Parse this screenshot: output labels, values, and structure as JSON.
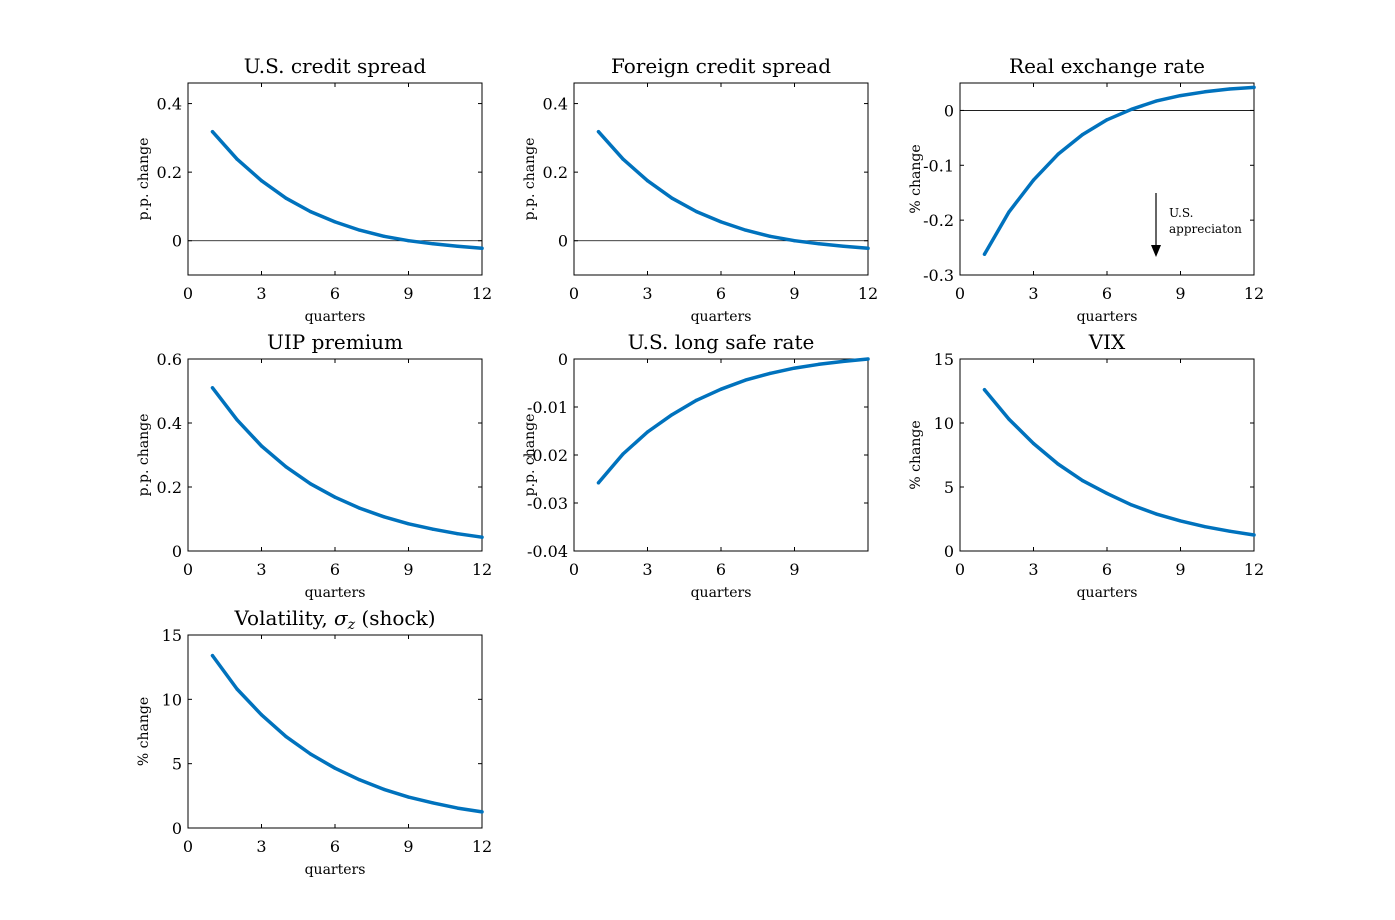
{
  "colors": {
    "line": "#0072BD",
    "zero_line": "#000000",
    "axes": "#000000"
  },
  "chart_data": [
    {
      "type": "line",
      "title": "U.S. credit spread",
      "xlabel": "quarters",
      "ylabel": "p.p. change",
      "xlim": [
        0,
        12
      ],
      "ylim": [
        -0.1,
        0.46
      ],
      "xticks": [
        0,
        3,
        6,
        9,
        12
      ],
      "xtick_labels": [
        "0",
        "3",
        "6",
        "9",
        "12"
      ],
      "yticks": [
        0,
        0.2,
        0.4
      ],
      "ytick_labels": [
        "0",
        "0.2",
        "0.4"
      ],
      "zero_line": true,
      "grid": false,
      "series": [
        {
          "x": [
            1,
            2,
            3,
            4,
            5,
            6,
            7,
            8,
            9,
            10,
            11,
            12
          ],
          "y": [
            0.318,
            0.238,
            0.175,
            0.124,
            0.085,
            0.055,
            0.031,
            0.013,
            0.0,
            -0.009,
            -0.016,
            -0.022
          ]
        }
      ]
    },
    {
      "type": "line",
      "title": "Foreign credit spread",
      "xlabel": "quarters",
      "ylabel": "p.p. change",
      "xlim": [
        0,
        12
      ],
      "ylim": [
        -0.1,
        0.46
      ],
      "xticks": [
        0,
        3,
        6,
        9,
        12
      ],
      "xtick_labels": [
        "0",
        "3",
        "6",
        "9",
        "12"
      ],
      "yticks": [
        0,
        0.2,
        0.4
      ],
      "ytick_labels": [
        "0",
        "0.2",
        "0.4"
      ],
      "zero_line": true,
      "grid": false,
      "series": [
        {
          "x": [
            1,
            2,
            3,
            4,
            5,
            6,
            7,
            8,
            9,
            10,
            11,
            12
          ],
          "y": [
            0.318,
            0.238,
            0.175,
            0.124,
            0.085,
            0.055,
            0.031,
            0.013,
            0.0,
            -0.009,
            -0.016,
            -0.022
          ]
        }
      ]
    },
    {
      "type": "line",
      "title": "Real exchange rate",
      "xlabel": "quarters",
      "ylabel": "% change",
      "xlim": [
        0,
        12
      ],
      "ylim": [
        -0.3,
        0.05
      ],
      "xticks": [
        0,
        3,
        6,
        9,
        12
      ],
      "xtick_labels": [
        "0",
        "3",
        "6",
        "9",
        "12"
      ],
      "yticks": [
        -0.3,
        -0.2,
        -0.1,
        0
      ],
      "ytick_labels": [
        "-0.3",
        "-0.2",
        "-0.1",
        "0"
      ],
      "zero_line": true,
      "grid": false,
      "annotation": {
        "text_lines": [
          "U.S.",
          "appreciaton"
        ],
        "x": 8,
        "y": -0.2
      },
      "series": [
        {
          "x": [
            1,
            2,
            3,
            4,
            5,
            6,
            7,
            8,
            9,
            10,
            11,
            12
          ],
          "y": [
            -0.262,
            -0.185,
            -0.127,
            -0.08,
            -0.044,
            -0.017,
            0.002,
            0.017,
            0.027,
            0.034,
            0.039,
            0.042
          ]
        }
      ]
    },
    {
      "type": "line",
      "title": "UIP premium",
      "xlabel": "quarters",
      "ylabel": "p.p. change",
      "xlim": [
        0,
        12
      ],
      "ylim": [
        0,
        0.6
      ],
      "xticks": [
        0,
        3,
        6,
        9,
        12
      ],
      "xtick_labels": [
        "0",
        "3",
        "6",
        "9",
        "12"
      ],
      "yticks": [
        0,
        0.2,
        0.4,
        0.6
      ],
      "ytick_labels": [
        "0",
        "0.2",
        "0.4",
        "0.6"
      ],
      "zero_line": false,
      "grid": false,
      "series": [
        {
          "x": [
            1,
            2,
            3,
            4,
            5,
            6,
            7,
            8,
            9,
            10,
            11,
            12
          ],
          "y": [
            0.51,
            0.41,
            0.328,
            0.263,
            0.21,
            0.168,
            0.134,
            0.107,
            0.085,
            0.068,
            0.054,
            0.043
          ]
        }
      ]
    },
    {
      "type": "line",
      "title": "U.S. long safe rate",
      "xlabel": "quarters",
      "ylabel": "p.p. change",
      "xlim": [
        0,
        12
      ],
      "ylim": [
        -0.04,
        0
      ],
      "xticks": [
        0,
        3,
        6,
        9
      ],
      "xtick_labels": [
        "0",
        "3",
        "6",
        "9"
      ],
      "yticks": [
        -0.04,
        -0.03,
        -0.02,
        -0.01,
        0
      ],
      "ytick_labels": [
        "-0.04",
        "-0.03",
        "-0.02",
        "-0.01",
        "0"
      ],
      "zero_line": false,
      "grid": false,
      "series": [
        {
          "x": [
            1,
            2,
            3,
            4,
            5,
            6,
            7,
            8,
            9,
            10,
            11,
            12
          ],
          "y": [
            -0.0258,
            -0.0198,
            -0.0152,
            -0.0116,
            -0.0086,
            -0.0063,
            -0.0044,
            -0.003,
            -0.0019,
            -0.0011,
            -0.0005,
            0.0
          ]
        }
      ]
    },
    {
      "type": "line",
      "title": "VIX",
      "xlabel": "quarters",
      "ylabel": "% change",
      "xlim": [
        0,
        12
      ],
      "ylim": [
        0,
        15
      ],
      "xticks": [
        0,
        3,
        6,
        9,
        12
      ],
      "xtick_labels": [
        "0",
        "3",
        "6",
        "9",
        "12"
      ],
      "yticks": [
        0,
        5,
        10,
        15
      ],
      "ytick_labels": [
        "0",
        "5",
        "10",
        "15"
      ],
      "zero_line": false,
      "grid": false,
      "series": [
        {
          "x": [
            1,
            2,
            3,
            4,
            5,
            6,
            7,
            8,
            9,
            10,
            11,
            12
          ],
          "y": [
            12.6,
            10.3,
            8.4,
            6.8,
            5.5,
            4.5,
            3.6,
            2.9,
            2.35,
            1.9,
            1.55,
            1.25
          ]
        }
      ]
    },
    {
      "type": "line",
      "title": "Volatility, σz (shock)",
      "title_parts": {
        "before": "Volatility, ",
        "symbol": "σ",
        "subscript": "z",
        "after": " (shock)"
      },
      "xlabel": "quarters",
      "ylabel": "% change",
      "xlim": [
        0,
        12
      ],
      "ylim": [
        0,
        15
      ],
      "xticks": [
        0,
        3,
        6,
        9,
        12
      ],
      "xtick_labels": [
        "0",
        "3",
        "6",
        "9",
        "12"
      ],
      "yticks": [
        0,
        5,
        10,
        15
      ],
      "ytick_labels": [
        "0",
        "5",
        "10",
        "15"
      ],
      "zero_line": false,
      "grid": false,
      "series": [
        {
          "x": [
            1,
            2,
            3,
            4,
            5,
            6,
            7,
            8,
            9,
            10,
            11,
            12
          ],
          "y": [
            13.4,
            10.8,
            8.8,
            7.1,
            5.75,
            4.65,
            3.75,
            3.0,
            2.4,
            1.95,
            1.55,
            1.25
          ]
        }
      ]
    }
  ]
}
